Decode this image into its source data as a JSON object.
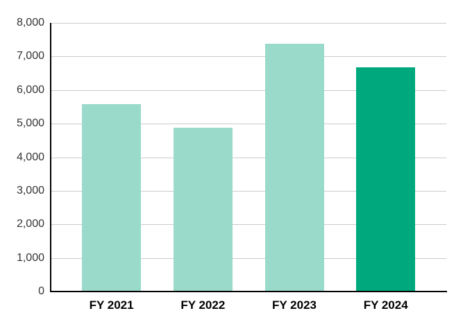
{
  "chart_data": {
    "type": "bar",
    "title": "",
    "xlabel": "",
    "ylabel": "",
    "categories": [
      "FY 2021",
      "FY 2022",
      "FY 2023",
      "FY 2024"
    ],
    "values": [
      5580,
      4870,
      7380,
      6680
    ],
    "ylim": [
      0,
      8000
    ],
    "ytick_step": 1000,
    "ytick_labels": [
      "0",
      "1,000",
      "2,000",
      "3,000",
      "4,000",
      "5,000",
      "6,000",
      "7,000",
      "8,000"
    ],
    "grid": true,
    "legend_position": "none",
    "bar_colors": [
      "#9ADACB",
      "#9ADACB",
      "#9ADACB",
      "#00A87E"
    ],
    "highlight_category": "FY 2024",
    "colors": {
      "bar_default": "#9ADACB",
      "bar_highlight": "#00A87E",
      "gridline": "#CBCBCB",
      "axis": "#000000",
      "ytick_text": "#333333",
      "category_text": "#000000",
      "background": "#FFFFFF"
    }
  }
}
